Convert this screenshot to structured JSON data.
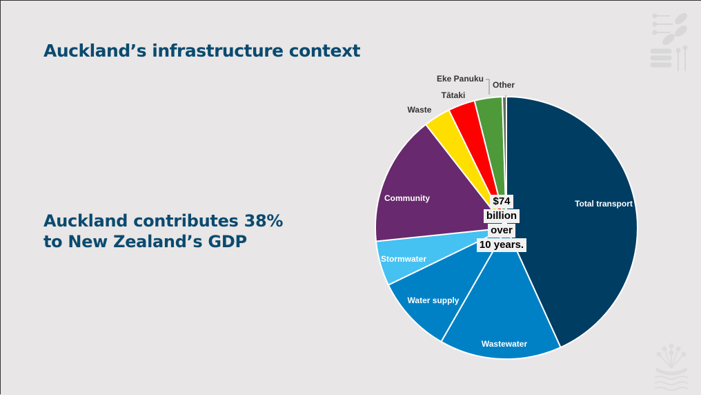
{
  "slide": {
    "title": "Auckland’s infrastructure context",
    "subtitle_line1": "Auckland contributes 38%",
    "subtitle_line2": "to New Zealand’s GDP"
  },
  "chart_center": [
    "$74",
    "billion",
    "over",
    "10 years."
  ],
  "chart_data": {
    "type": "pie",
    "title": "",
    "slices": [
      {
        "label": "Total transport",
        "value": 43.0,
        "color": "#003d63",
        "label_color": "#ffffff"
      },
      {
        "label": "Wastewater",
        "value": 15.0,
        "color": "#0081c6",
        "label_color": "#ffffff"
      },
      {
        "label": "Water supply",
        "value": 9.5,
        "color": "#0081c6",
        "label_color": "#ffffff"
      },
      {
        "label": "Stormwater",
        "value": 5.5,
        "color": "#45c1f2",
        "label_color": "#ffffff"
      },
      {
        "label": "Community",
        "value": 16.0,
        "color": "#68296e",
        "label_color": "#ffffff"
      },
      {
        "label": "Waste",
        "value": 3.3,
        "color": "#ffdf00",
        "label_color": "#333333"
      },
      {
        "label": "Tātaki",
        "value": 3.3,
        "color": "#ff0000",
        "label_color": "#333333"
      },
      {
        "label": "Eke Panuku",
        "value": 3.4,
        "color": "#4e9a3a",
        "label_color": "#333333"
      },
      {
        "label": "Other",
        "value": 0.5,
        "color": "#5a6f5a",
        "label_color": "#333333"
      }
    ]
  }
}
